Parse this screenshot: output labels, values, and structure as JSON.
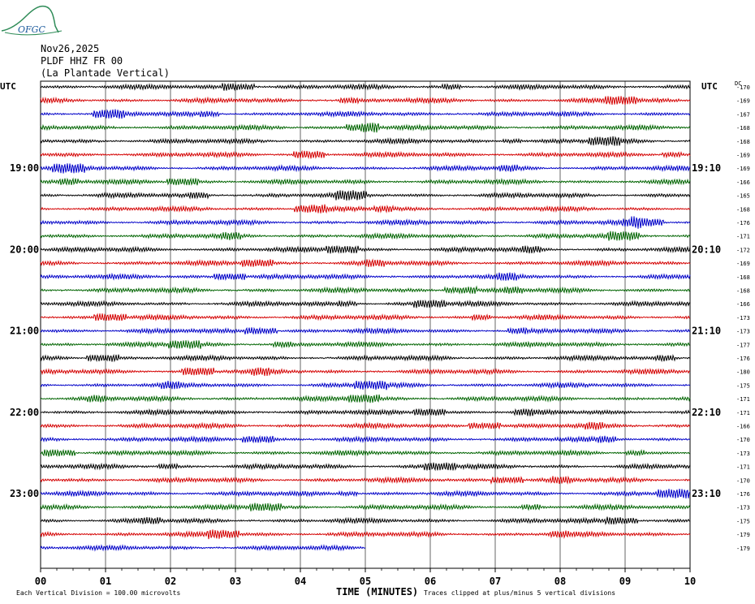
{
  "logo_text": "OFGC",
  "header": {
    "date": "Nov26,2025",
    "station": "PLDF HHZ FR 00",
    "location": "(La Plantade Vertical)"
  },
  "colors": {
    "trace_cycle": [
      "#000000",
      "#d40000",
      "#0000c8",
      "#006400"
    ],
    "grid": "#000000",
    "logo": "#2e8b57"
  },
  "chart_data": {
    "type": "line",
    "title": "",
    "xlabel": "TIME (MINUTES)",
    "ylabel": "",
    "x_ticks": [
      "00",
      "01",
      "02",
      "03",
      "04",
      "05",
      "06",
      "07",
      "08",
      "09",
      "10"
    ],
    "xlim": [
      0,
      10
    ],
    "left_axis_title": "UTC",
    "right_axis_title": "UTC",
    "offset_header": "DC",
    "left_time_labels": [
      {
        "row": 6,
        "label": "19:00"
      },
      {
        "row": 12,
        "label": "20:00"
      },
      {
        "row": 18,
        "label": "21:00"
      },
      {
        "row": 24,
        "label": "22:00"
      },
      {
        "row": 30,
        "label": "23:00"
      }
    ],
    "right_time_labels": [
      {
        "row": 6,
        "label": "19:10"
      },
      {
        "row": 12,
        "label": "20:10"
      },
      {
        "row": 18,
        "label": "21:10"
      },
      {
        "row": 24,
        "label": "22:10"
      },
      {
        "row": 30,
        "label": "23:10"
      }
    ],
    "trace_count": 35,
    "trace_minutes_covered": [
      10,
      10,
      10,
      10,
      10,
      10,
      10,
      10,
      10,
      10,
      10,
      10,
      10,
      10,
      10,
      10,
      10,
      10,
      10,
      10,
      10,
      10,
      10,
      10,
      10,
      10,
      10,
      10,
      10,
      10,
      10,
      10,
      10,
      10,
      5
    ],
    "dc_offsets": [
      -170,
      -169,
      -167,
      -168,
      -168,
      -169,
      -169,
      -166,
      -165,
      -168,
      -176,
      -171,
      -172,
      -169,
      -168,
      -168,
      -166,
      -173,
      -173,
      -177,
      -176,
      -180,
      -175,
      -171,
      -171,
      -166,
      -170,
      -173,
      -171,
      -170,
      -176,
      -173,
      -175,
      -179,
      -179
    ],
    "footer_scale": "Each Vertical Division =  100.00 microvolts",
    "footer_clip": "Traces clipped at plus/minus 5 vertical divisions"
  }
}
